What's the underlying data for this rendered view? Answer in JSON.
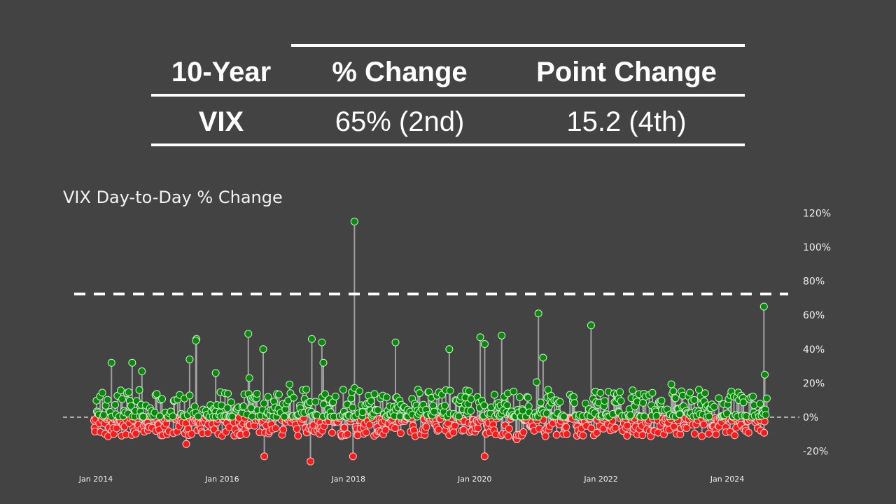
{
  "summary_table": {
    "headers": [
      "10-Year",
      "% Change",
      "Point Change"
    ],
    "rows": [
      [
        "VIX",
        "65% (2nd)",
        "15.2 (4th)"
      ]
    ]
  },
  "chart_data": {
    "type": "scatter",
    "subtype": "lollipop",
    "title": "VIX Day-to-Day % Change",
    "xlabel": "",
    "ylabel": "",
    "x_ticks": [
      "Jan 2014",
      "Jan 2016",
      "Jan 2018",
      "Jan 2020",
      "Jan 2022",
      "Jan 2024"
    ],
    "y_ticks": [
      "120%",
      "100%",
      "80%",
      "60%",
      "40%",
      "20%",
      "0%",
      "-20%"
    ],
    "ylim": [
      -25,
      120
    ],
    "x_range": [
      "Jan 2014",
      "Jul 2024"
    ],
    "y_axis_position": "right",
    "grid": false,
    "reference_lines": [
      {
        "y": 0,
        "style": "dashed",
        "color": "#cccccc"
      },
      {
        "y": 72,
        "style": "dashed",
        "color": "#ffffff",
        "note": "threshold line near 72%"
      }
    ],
    "colors": {
      "positive": "#0a8a0a",
      "negative": "#ff1a1a",
      "stem": "#b0b0b0",
      "background": "#434343"
    },
    "notable_points": [
      {
        "date": "2014-04",
        "value": 32
      },
      {
        "date": "2014-08",
        "value": 32
      },
      {
        "date": "2014-10",
        "value": 27
      },
      {
        "date": "2015-07",
        "value": 34
      },
      {
        "date": "2015-08",
        "value": 46
      },
      {
        "date": "2015-08",
        "value": 45
      },
      {
        "date": "2015-12",
        "value": 26
      },
      {
        "date": "2016-06",
        "value": 49
      },
      {
        "date": "2016-06",
        "value": 23
      },
      {
        "date": "2016-09",
        "value": 40
      },
      {
        "date": "2016-09",
        "value": -23
      },
      {
        "date": "2017-06",
        "value": -26
      },
      {
        "date": "2017-06",
        "value": 46
      },
      {
        "date": "2017-08",
        "value": 44
      },
      {
        "date": "2017-08",
        "value": 32
      },
      {
        "date": "2018-02",
        "value": 115
      },
      {
        "date": "2018-02",
        "value": -23
      },
      {
        "date": "2018-10",
        "value": 44
      },
      {
        "date": "2019-08",
        "value": 40
      },
      {
        "date": "2020-02",
        "value": 47
      },
      {
        "date": "2020-03",
        "value": 43
      },
      {
        "date": "2020-03",
        "value": -23
      },
      {
        "date": "2020-06",
        "value": 48
      },
      {
        "date": "2021-01",
        "value": 61
      },
      {
        "date": "2021-02",
        "value": 35
      },
      {
        "date": "2021-11",
        "value": 54
      },
      {
        "date": "2024-08",
        "value": 65
      },
      {
        "date": "2024-08",
        "value": 25
      }
    ],
    "typical_range": {
      "positive": [
        0,
        20
      ],
      "negative": [
        -15,
        0
      ]
    }
  }
}
